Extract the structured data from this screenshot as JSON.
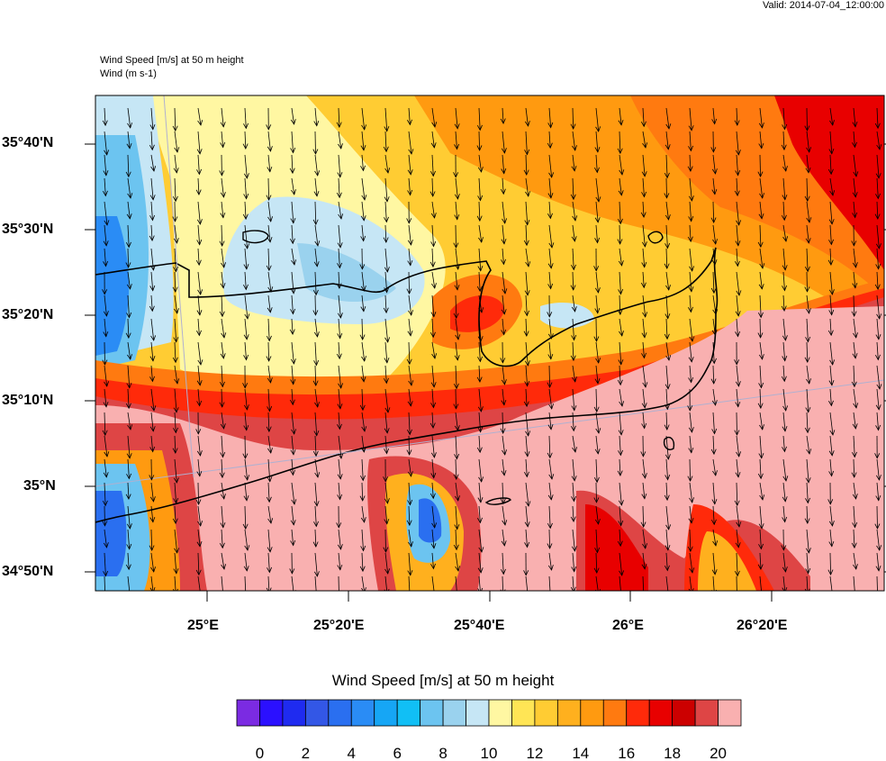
{
  "header": {
    "valid": "Valid: 2014-07-04_12:00:00",
    "field_title": "Wind Speed [m/s] at 50 m height",
    "vector_title": "Wind   (m s-1)"
  },
  "axes": {
    "lat_labels": [
      "35°40'N",
      "35°30'N",
      "35°20'N",
      "35°10'N",
      "35°N",
      "34°50'N"
    ],
    "lon_labels": [
      "25°E",
      "25°20'E",
      "25°40'E",
      "26°E",
      "26°20'E"
    ]
  },
  "colorbar": {
    "title": "Wind Speed [m/s] at 50 m height",
    "tick_labels": [
      "0",
      "2",
      "4",
      "6",
      "8",
      "10",
      "12",
      "14",
      "16",
      "18",
      "20"
    ],
    "colors": [
      "#7b2be2",
      "#2b10ff",
      "#1f2bf0",
      "#3357e6",
      "#2a6ff0",
      "#2a8cf5",
      "#16a6f5",
      "#11bff5",
      "#6cc4f0",
      "#9ad2ee",
      "#c6e6f5",
      "#fff7a2",
      "#ffe555",
      "#ffcc33",
      "#ffb01e",
      "#ff9a10",
      "#ff7a10",
      "#ff2a0a",
      "#e80000",
      "#cc0000",
      "#de4545",
      "#f9b0b0"
    ]
  },
  "map": {
    "region_fill_colors": {
      "pink": "#f9b0b0",
      "dark_red": "#de4545",
      "red": "#e80000",
      "orange": "#ff9a10",
      "yellow": "#ffcc33",
      "pale_yellow": "#fff7a2",
      "light_blue": "#c6e6f5",
      "blue": "#6cc4f0",
      "deep_blue": "#2a8cf5"
    },
    "wind_direction": "north-northwest to south-southeast"
  }
}
